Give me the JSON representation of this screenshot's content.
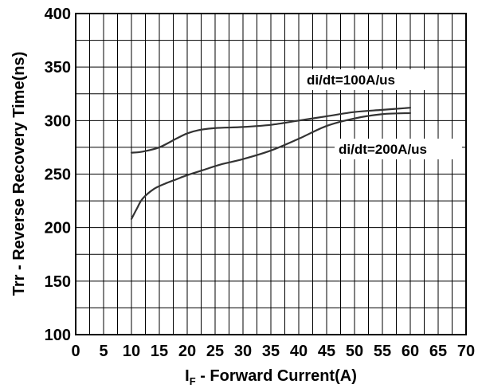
{
  "chart_data": {
    "type": "line",
    "xlabel_main": "I",
    "xlabel_sub": "F",
    "xlabel_rest": " - Forward Current(A)",
    "ylabel": "Trr - Reverse Recovery Time(ns)",
    "xlim": [
      0,
      70
    ],
    "ylim": [
      100,
      400
    ],
    "xticks": [
      0,
      5,
      10,
      15,
      20,
      25,
      30,
      35,
      40,
      45,
      50,
      55,
      60,
      65,
      70
    ],
    "yticks": [
      100,
      150,
      200,
      250,
      300,
      350,
      400
    ],
    "grid": true,
    "series": [
      {
        "name": "di/dt=100A/us",
        "x": [
          10,
          12,
          15,
          18,
          20,
          22,
          25,
          30,
          35,
          40,
          45,
          50,
          55,
          60
        ],
        "y": [
          270,
          271,
          275,
          283,
          288,
          291,
          293,
          294,
          296,
          300,
          304,
          308,
          310,
          312
        ]
      },
      {
        "name": "di/dt=200A/us",
        "x": [
          10,
          11,
          12,
          14,
          16,
          18,
          20,
          23,
          26,
          30,
          35,
          40,
          45,
          50,
          55,
          60
        ],
        "y": [
          208,
          218,
          227,
          236,
          241,
          245,
          249,
          254,
          259,
          264,
          272,
          283,
          295,
          302,
          306,
          307
        ]
      }
    ]
  }
}
